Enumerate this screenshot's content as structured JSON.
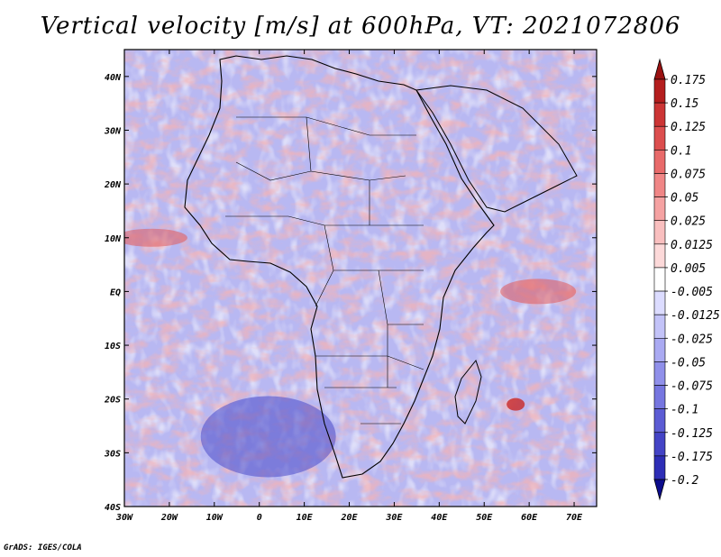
{
  "title": "Vertical velocity [m/s] at 600hPa, VT: 2021072806",
  "credit": "GrADS: IGES/COLA",
  "map": {
    "lon_range": [
      -30,
      75
    ],
    "lat_range": [
      -40,
      45
    ],
    "lat_ticks": [
      "40N",
      "30N",
      "20N",
      "10N",
      "EQ",
      "10S",
      "20S",
      "30S",
      "40S"
    ],
    "lon_ticks": [
      "30W",
      "20W",
      "10W",
      "0",
      "10E",
      "20E",
      "30E",
      "40E",
      "50E",
      "60E",
      "70E"
    ],
    "features": [
      {
        "name": "strong-descent-south-atlantic",
        "lon": 2,
        "lat": -27,
        "sign": "negative"
      },
      {
        "name": "ascent-band-west-africa-coast",
        "lon": -24,
        "lat": 10,
        "sign": "positive"
      },
      {
        "name": "ascent-band-indian-ocean-equatorial",
        "lon": 62,
        "lat": 0,
        "sign": "positive"
      },
      {
        "name": "ascent-cell-mascarene",
        "lon": 57,
        "lat": -21,
        "sign": "positive"
      }
    ]
  },
  "colorbar": {
    "levels": [
      {
        "label": "0.175",
        "color": "#b41e1e"
      },
      {
        "label": "0.15",
        "color": "#cc3535"
      },
      {
        "label": "0.125",
        "color": "#dc4e4e"
      },
      {
        "label": "0.1",
        "color": "#e86a6a"
      },
      {
        "label": "0.075",
        "color": "#f08686"
      },
      {
        "label": "0.05",
        "color": "#f5a2a2"
      },
      {
        "label": "0.025",
        "color": "#f9bfbf"
      },
      {
        "label": "0.0125",
        "color": "#fcd9d9"
      },
      {
        "label": "0.005",
        "color": "#ffffff"
      },
      {
        "label": "-0.005",
        "color": "#dcdcff"
      },
      {
        "label": "-0.0125",
        "color": "#c3c3f8"
      },
      {
        "label": "-0.025",
        "color": "#aaaaf2"
      },
      {
        "label": "-0.05",
        "color": "#9090ea"
      },
      {
        "label": "-0.075",
        "color": "#7676e0"
      },
      {
        "label": "-0.1",
        "color": "#5c5cd4"
      },
      {
        "label": "-0.125",
        "color": "#4444c6"
      },
      {
        "label": "-0.175",
        "color": "#2e2eb6"
      },
      {
        "label": "-0.2",
        "color": "#1c1ca4"
      }
    ],
    "top_arrow_color": "#9a1212",
    "bottom_arrow_color": "#0c0c8c"
  }
}
